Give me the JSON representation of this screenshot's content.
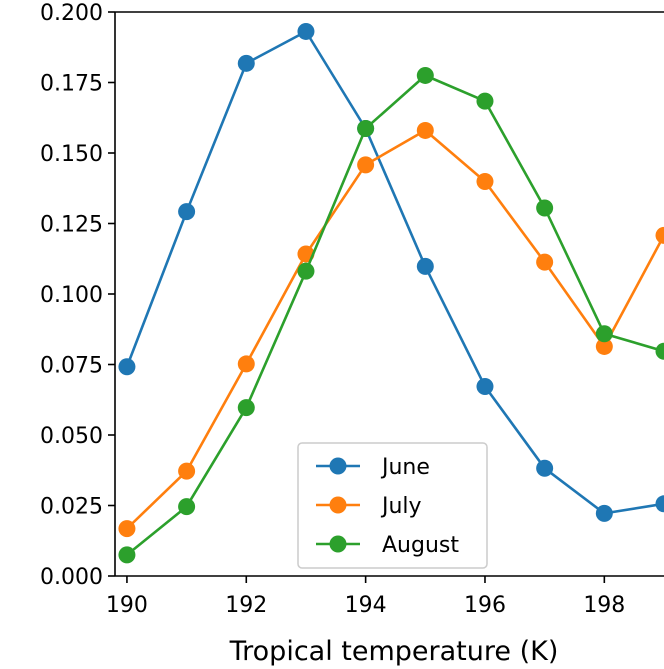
{
  "chart_data": {
    "type": "line",
    "title": "",
    "xlabel": "Tropical temperature (K)",
    "ylabel": "",
    "x": [
      190,
      191,
      192,
      193,
      194,
      195,
      196,
      197,
      198,
      199
    ],
    "xlim": [
      189.8,
      199
    ],
    "ylim": [
      0.0,
      0.2
    ],
    "xticks": [
      "190",
      "192",
      "194",
      "196",
      "198"
    ],
    "yticks": [
      "0.000",
      "0.025",
      "0.050",
      "0.075",
      "0.100",
      "0.125",
      "0.150",
      "0.175",
      "0.200"
    ],
    "grid": false,
    "legend_position": "lower-center",
    "series": [
      {
        "name": "June",
        "color": "#1f77b4",
        "values": [
          0.0742,
          0.1292,
          0.1818,
          0.1931,
          0.1587,
          0.1098,
          0.0672,
          0.0382,
          0.0222,
          0.0256
        ]
      },
      {
        "name": "July",
        "color": "#ff7f0e",
        "values": [
          0.0168,
          0.0372,
          0.0752,
          0.1142,
          0.1458,
          0.158,
          0.1399,
          0.1113,
          0.0814,
          0.1208
        ]
      },
      {
        "name": "August",
        "color": "#2ca02c",
        "values": [
          0.0075,
          0.0246,
          0.0597,
          0.1081,
          0.1587,
          0.1775,
          0.1684,
          0.1305,
          0.0859,
          0.0797
        ]
      }
    ]
  }
}
